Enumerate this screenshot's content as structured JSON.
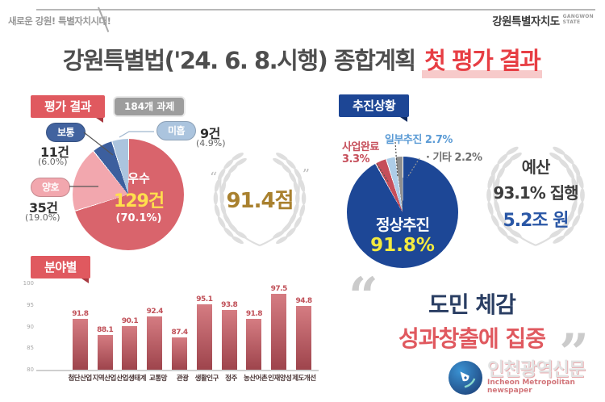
{
  "header": {
    "slogan": "새로운 강원! 특별자치시대!",
    "logo_text": "강원특별자치도",
    "logo_sub1": "GANGWON",
    "logo_sub2": "STATE",
    "title_main": "강원특별법('24. 6. 8.시행) 종합계획",
    "title_accent": "첫 평가 결과"
  },
  "evaluation": {
    "section_badge": "평가 결과",
    "tasks_badge": "184개 과제",
    "center_label": "우수",
    "center_count": "129건",
    "center_pct": "(70.1%)",
    "labels": {
      "botong": {
        "pill": "보통",
        "count": "11건",
        "pct": "(6.0%)"
      },
      "miheup": {
        "pill": "미흡",
        "count": "9건",
        "pct": "(4.9%)"
      },
      "yangho": {
        "pill": "양호",
        "count": "35건",
        "pct": "(19.0%)"
      }
    },
    "score": "91.4점",
    "quote_open": "“",
    "quote_close": "”"
  },
  "progress": {
    "section_badge": "추진상황",
    "center_label": "정상추진",
    "center_pct": "91.8%",
    "labels": {
      "partial": "일부추진 2.7%",
      "complete_line1": "사업완료",
      "complete_line2": "3.3%",
      "etc": "· 기타 2.2%"
    },
    "budget_line1": "예산",
    "budget_line2": "93.1% 집행",
    "budget_line3": "5.2조 원"
  },
  "sector": {
    "section_badge": "분야별"
  },
  "quote": {
    "open": "“",
    "line1": "도민 체감",
    "line2": "성과창출에 집중",
    "close": "”"
  },
  "watermark": {
    "name": "인천광역신문",
    "sub": "Incheon Metropolitan newspaper"
  },
  "icons": {
    "wreath": "laurel-wreath",
    "pen": "pen-nib",
    "quote": "double-quote"
  },
  "colors": {
    "title_accent": "#e73e44",
    "badge_red": "#e0595f",
    "badge_navy": "#1d4695",
    "badge_gray": "#9d9d9d",
    "score_gold": "#a9812f",
    "center_count_yellow": "#ffdf4d",
    "progress_pct_yellow": "#f3ea3f",
    "budget_blue": "#2a57a6",
    "quote_navy": "#2a3e63",
    "quote_red": "#e0595f",
    "bar_red": "#c05058"
  },
  "chart_data": [
    {
      "type": "pie",
      "title": "평가 결과 (184개 과제)",
      "slices": [
        {
          "label": "우수",
          "count": 129,
          "pct": 70.1,
          "color": "#d9646c"
        },
        {
          "label": "양호",
          "count": 35,
          "pct": 19.0,
          "color": "#f2a7ae"
        },
        {
          "label": "보통",
          "count": 11,
          "pct": 6.0,
          "color": "#3c5f9e"
        },
        {
          "label": "미흡",
          "count": 9,
          "pct": 4.9,
          "color": "#abc4de"
        }
      ],
      "annotation": "종합점수 91.4점"
    },
    {
      "type": "pie",
      "title": "추진상황",
      "slices": [
        {
          "label": "정상추진",
          "pct": 91.8,
          "color": "#1d4796"
        },
        {
          "label": "사업완료",
          "pct": 3.3,
          "color": "#c64f5b"
        },
        {
          "label": "일부추진",
          "pct": 2.7,
          "color": "#aecde8"
        },
        {
          "label": "기타",
          "pct": 2.2,
          "color": "#8f8f8f"
        }
      ],
      "annotation": "예산 93.1% 집행 5.2조 원"
    },
    {
      "type": "bar",
      "title": "분야별",
      "categories": [
        "첨단산업",
        "지역산업",
        "산업생태계",
        "교통망",
        "관광",
        "생활인구",
        "정주",
        "농산어촌",
        "인재양성",
        "제도개선"
      ],
      "values": [
        91.8,
        88.1,
        90.1,
        92.4,
        87.4,
        95.1,
        93.8,
        91.8,
        97.5,
        94.8
      ],
      "ylim": [
        80,
        100
      ],
      "yticks": [
        100,
        95,
        90,
        85,
        80
      ],
      "grid": false
    }
  ]
}
